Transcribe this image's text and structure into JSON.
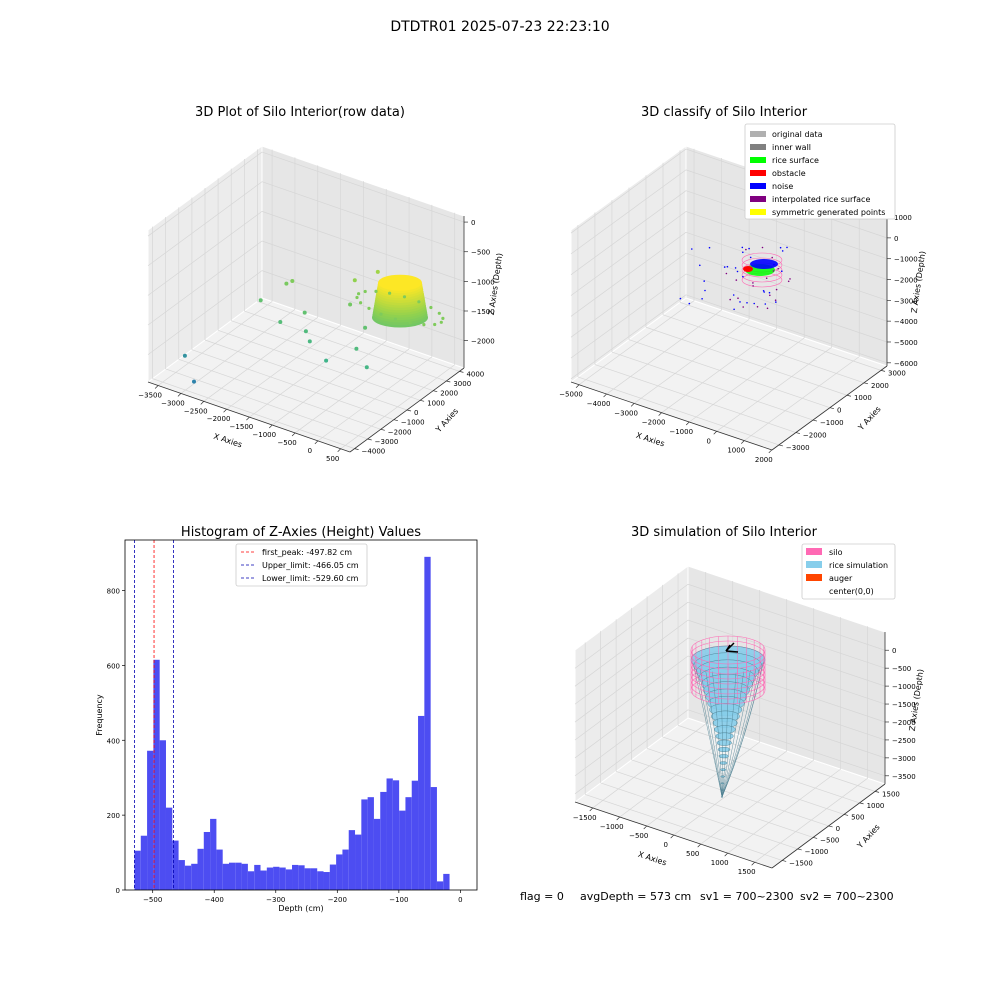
{
  "figure_title": "DTDTR01 2025-07-23 22:23:10",
  "footer": {
    "flag": "flag = 0",
    "avg_depth": "avgDepth = 573 cm",
    "sv1": "sv1 = 700~2300",
    "sv2": "sv2 = 700~2300"
  },
  "colors": {
    "rice_gradient": [
      "#2a7ab0",
      "#3fb48a",
      "#8fd14f",
      "#fde725"
    ],
    "original_data": "#b0b0b0",
    "inner_wall": "#808080",
    "rice_surface": "#00ff00",
    "obstacle": "#ff0000",
    "noise": "#0000ff",
    "interpolated_rice_surface": "#800080",
    "symmetric_generated_points": "#ffff00",
    "silo": "#ff69b4",
    "rice_simulation": "#87ceeb",
    "auger": "#ff4500",
    "histogram_bar": "#4d4df2",
    "first_peak_line": "#ff0000",
    "limit_lines": "#0000b0"
  },
  "chart_data": [
    {
      "type": "scatter",
      "dimension": "3d",
      "title": "3D Plot of Silo Interior(row data)",
      "xlabel": "X Axies",
      "ylabel": "Y Axies",
      "zlabel": "Z Axies (Depth)",
      "x_ticks": [
        "−3500",
        "−3000",
        "−2500",
        "−2000",
        "−1500",
        "−1000",
        "−500",
        "0",
        "500"
      ],
      "y_ticks": [
        "−4000",
        "−3000",
        "−2000",
        "−1000",
        "0",
        "1000",
        "2000",
        "3000",
        "4000"
      ],
      "z_ticks": [
        "0",
        "−500",
        "−1000",
        "−1500",
        "−2000"
      ],
      "xlim": [
        -3700,
        700
      ],
      "ylim": [
        -4300,
        4300
      ],
      "zlim": [
        -2300,
        100
      ],
      "points": [
        {
          "x": -3300,
          "y": -2900,
          "z": -2000
        },
        {
          "x": -2900,
          "y": -3600,
          "z": -2200
        },
        {
          "x": -2400,
          "y": -300,
          "z": -1300
        },
        {
          "x": -2100,
          "y": 600,
          "z": -1100
        },
        {
          "x": -2000,
          "y": 700,
          "z": -1050
        },
        {
          "x": -1800,
          "y": -900,
          "z": -1400
        },
        {
          "x": -1500,
          "y": -100,
          "z": -1300
        },
        {
          "x": -1300,
          "y": -700,
          "z": -1450
        },
        {
          "x": -1100,
          "y": -1100,
          "z": -1500
        },
        {
          "x": -600,
          "y": -1600,
          "z": -1600
        },
        {
          "x": -200,
          "y": -700,
          "z": -1450
        },
        {
          "x": 200,
          "y": -1300,
          "z": -1550
        },
        {
          "x": -900,
          "y": 1600,
          "z": -900
        },
        {
          "x": -600,
          "y": 2300,
          "z": -800
        },
        {
          "x": -300,
          "y": 300,
          "z": -1300
        },
        {
          "x": -800,
          "y": 900,
          "z": -1150
        }
      ],
      "surface": {
        "center_x": 200,
        "center_y": 1200,
        "radius": 700,
        "z_top": -600,
        "z_bottom": -1150
      }
    },
    {
      "type": "scatter",
      "dimension": "3d",
      "title": "3D classify of Silo Interior",
      "xlabel": "X Axies",
      "ylabel": "Y Axies",
      "zlabel": "Z Axies (Depth)",
      "x_ticks": [
        "−5000",
        "−4000",
        "−3000",
        "−2000",
        "−1000",
        "0",
        "1000",
        "2000"
      ],
      "y_ticks": [
        "−3000",
        "−2000",
        "−1000",
        "0",
        "1000",
        "2000",
        "3000"
      ],
      "z_ticks": [
        "1000",
        "0",
        "−1000",
        "−2000",
        "−3000",
        "−4000",
        "−5000",
        "−6000"
      ],
      "xlim": [
        -5300,
        2300
      ],
      "ylim": [
        -3300,
        3300
      ],
      "zlim": [
        -6200,
        1200
      ],
      "legend_position": "top-right",
      "legend": [
        {
          "label": "original data",
          "color_key": "original_data"
        },
        {
          "label": "inner wall",
          "color_key": "inner_wall"
        },
        {
          "label": "rice surface",
          "color_key": "rice_surface"
        },
        {
          "label": "obstacle",
          "color_key": "obstacle"
        },
        {
          "label": "noise",
          "color_key": "noise"
        },
        {
          "label": "interpolated rice surface",
          "color_key": "interpolated_rice_surface"
        },
        {
          "label": "symmetric generated points",
          "color_key": "symmetric_generated_points"
        }
      ]
    },
    {
      "type": "bar",
      "title": "Histogram of Z-Axies (Height) Values",
      "xlabel": "Depth (cm)",
      "ylabel": "Frequency",
      "x_ticks": [
        -500,
        -400,
        -300,
        -200,
        -100,
        0
      ],
      "y_ticks": [
        0,
        200,
        400,
        600,
        800
      ],
      "xlim": [
        -545,
        27
      ],
      "ylim": [
        0,
        935
      ],
      "bin_start": -529.6,
      "bin_width": 10.24,
      "values": [
        105,
        145,
        372,
        615,
        400,
        220,
        132,
        80,
        65,
        70,
        110,
        155,
        190,
        108,
        70,
        73,
        73,
        70,
        50,
        67,
        52,
        60,
        62,
        60,
        55,
        67,
        66,
        58,
        58,
        50,
        48,
        68,
        95,
        108,
        160,
        148,
        242,
        248,
        190,
        262,
        298,
        293,
        212,
        248,
        292,
        465,
        890,
        275,
        23,
        43
      ],
      "legend_position": "top-center",
      "lines": [
        {
          "label": "first_peak: -497.82 cm",
          "value": -497.82,
          "color_key": "first_peak_line"
        },
        {
          "label": "Upper_limit: -466.05 cm",
          "value": -466.05,
          "color_key": "limit_lines"
        },
        {
          "label": "Lower_limit: -529.60 cm",
          "value": -529.6,
          "color_key": "limit_lines"
        }
      ]
    },
    {
      "type": "area",
      "dimension": "3d",
      "title": "3D simulation of Silo Interior",
      "xlabel": "X Axies",
      "ylabel": "Y Axies",
      "zlabel": "Z Axies (Depth)",
      "x_ticks": [
        "−1500",
        "−1000",
        "−500",
        "0",
        "500",
        "1000",
        "1500"
      ],
      "y_ticks": [
        "−1500",
        "−1000",
        "−500",
        "0",
        "500",
        "1000",
        "1500"
      ],
      "z_ticks": [
        "0",
        "−500",
        "−1000",
        "−1500",
        "−2000",
        "−2500",
        "−3000",
        "−3500"
      ],
      "xlim": [
        -1800,
        1800
      ],
      "ylim": [
        -1800,
        1800
      ],
      "zlim": [
        -3800,
        200
      ],
      "silo": {
        "radius": 650,
        "z_top": -200,
        "z_bottom": -1300
      },
      "rice_surface": {
        "z_rim": -800,
        "z_apex": -3500
      },
      "legend_position": "top-right",
      "legend": [
        {
          "label": "silo",
          "color_key": "silo"
        },
        {
          "label": "rice simulation",
          "color_key": "rice_simulation"
        },
        {
          "label": "auger",
          "color_key": "auger"
        },
        {
          "label": "center(0,0)",
          "color_key": ""
        }
      ]
    }
  ]
}
